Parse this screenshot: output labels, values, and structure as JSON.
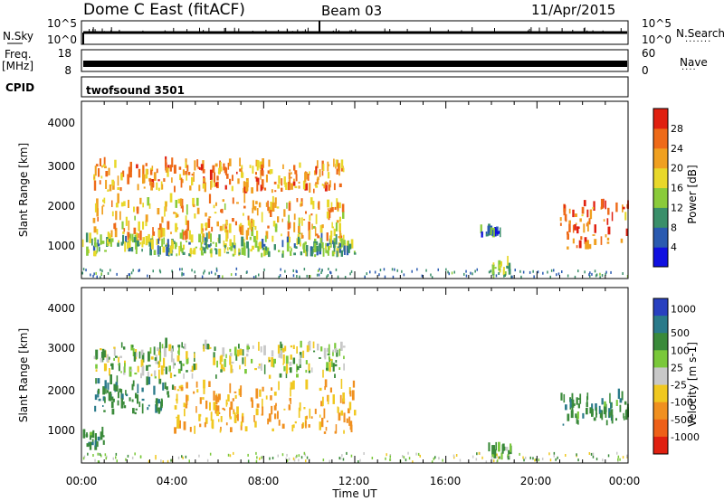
{
  "header": {
    "radar": "Dome C East (fitACF)",
    "beam": "Beam 03",
    "date": "11/Apr/2015"
  },
  "strips": {
    "nsky": {
      "label": "N.Sky",
      "left_ticks": [
        "10^5",
        "10^0"
      ],
      "right_ticks": [
        "10^5",
        "10^0"
      ],
      "right_label": "N.Search"
    },
    "freq": {
      "label": "Freq.",
      "unit": "[MHz]",
      "left_ticks": [
        "18",
        "8"
      ],
      "right_ticks": [
        "60",
        "0"
      ],
      "right_label": "Nave"
    },
    "cpid": {
      "label": "CPID",
      "program": "twofsound 3501"
    }
  },
  "axes": {
    "xlabel": "Time UT",
    "xticks": [
      "00:00",
      "04:00",
      "08:00",
      "12:00",
      "16:00",
      "20:00",
      "00:00"
    ],
    "ylabel": "Slant Range [km]",
    "yticks": [
      "4000",
      "3000",
      "2000",
      "1000"
    ]
  },
  "colors": {
    "power": [
      "#1010e0",
      "#2a5ab0",
      "#3a8f6a",
      "#8acb3a",
      "#e8d82a",
      "#f0a020",
      "#ee6a18",
      "#e02010"
    ],
    "velocity": [
      "#2840c0",
      "#2a7a8a",
      "#3a8a3a",
      "#7ac83a",
      "#c8c8c8",
      "#f0c820",
      "#f09020",
      "#ee6018",
      "#e02010"
    ]
  },
  "chart_data": [
    {
      "type": "heatmap",
      "title": "Power [dB]",
      "xlabel": "Time UT",
      "ylabel": "Slant Range [km]",
      "x_range_hours": [
        0,
        24
      ],
      "y_range_km": [
        180,
        4600
      ],
      "colorbar": {
        "label": "Power [dB]",
        "ticks": [
          "4",
          "8",
          "12",
          "16",
          "20",
          "24",
          "28"
        ],
        "range": [
          0,
          30
        ]
      },
      "regions": [
        {
          "t": [
            0.5,
            11.5
          ],
          "r": [
            2300,
            3000
          ],
          "value": 22
        },
        {
          "t": [
            0.5,
            11.5
          ],
          "r": [
            1100,
            2100
          ],
          "value": 20
        },
        {
          "t": [
            0,
            12
          ],
          "r": [
            700,
            1100
          ],
          "value": 12
        },
        {
          "t": [
            21,
            24
          ],
          "r": [
            900,
            2000
          ],
          "value": 24
        },
        {
          "t": [
            17.8,
            18.8
          ],
          "r": [
            250,
            500
          ],
          "value": 14
        },
        {
          "t": [
            17.5,
            18.5
          ],
          "r": [
            1200,
            1350
          ],
          "value": 6
        }
      ]
    },
    {
      "type": "heatmap",
      "title": "Velocity [m s-1]",
      "xlabel": "Time UT",
      "ylabel": "Slant Range [km]",
      "x_range_hours": [
        0,
        24
      ],
      "y_range_km": [
        180,
        4600
      ],
      "colorbar": {
        "label": "Velocity [m s-1]",
        "ticks": [
          "1000",
          "500",
          "100",
          "25",
          "-25",
          "-100",
          "-500",
          "-1000"
        ]
      },
      "regions": [
        {
          "t": [
            0.5,
            11.5
          ],
          "r": [
            2300,
            3100
          ],
          "value": 0
        },
        {
          "t": [
            4,
            12
          ],
          "r": [
            900,
            2100
          ],
          "value": -300
        },
        {
          "t": [
            0.5,
            4
          ],
          "r": [
            1400,
            2200
          ],
          "value": 250
        },
        {
          "t": [
            0,
            1
          ],
          "r": [
            500,
            900
          ],
          "value": 200
        },
        {
          "t": [
            21,
            24
          ],
          "r": [
            1100,
            1800
          ],
          "value": 200
        },
        {
          "t": [
            17.8,
            18.8
          ],
          "r": [
            250,
            500
          ],
          "value": 100
        }
      ]
    }
  ]
}
